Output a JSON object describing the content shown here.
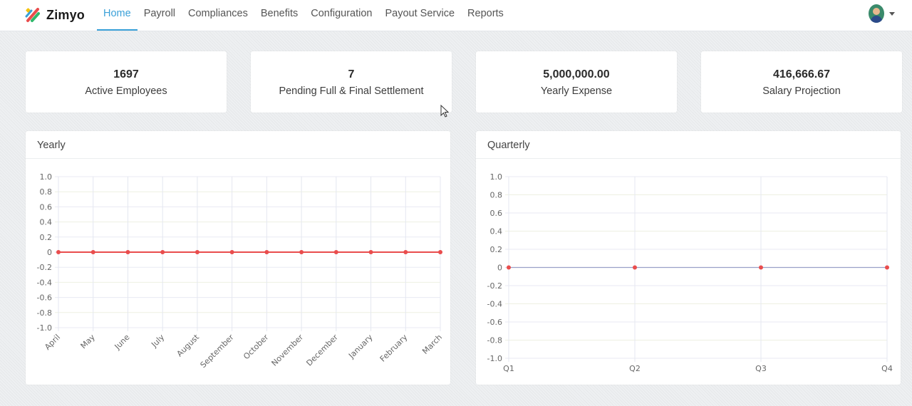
{
  "app": {
    "name": "Zimyo",
    "colors": {
      "accent": "#3aa0d8",
      "series": "#e94d4d"
    }
  },
  "nav": {
    "items": [
      {
        "label": "Home",
        "active": true
      },
      {
        "label": "Payroll"
      },
      {
        "label": "Compliances"
      },
      {
        "label": "Benefits"
      },
      {
        "label": "Configuration"
      },
      {
        "label": "Payout Service"
      },
      {
        "label": "Reports"
      }
    ]
  },
  "user": {
    "avatar_icon": "user-avatar-icon",
    "menu_icon": "caret-down-icon"
  },
  "stats": [
    {
      "value": "1697",
      "label": "Active Employees"
    },
    {
      "value": "7",
      "label": "Pending Full & Final Settlement"
    },
    {
      "value": "5,000,000.00",
      "label": "Yearly Expense"
    },
    {
      "value": "416,666.67",
      "label": "Salary Projection"
    }
  ],
  "panels": {
    "yearly_title": "Yearly",
    "quarterly_title": "Quarterly"
  },
  "chart_data": [
    {
      "type": "line",
      "title": "Yearly",
      "categories": [
        "April",
        "May",
        "June",
        "July",
        "August",
        "September",
        "October",
        "November",
        "December",
        "January",
        "February",
        "March"
      ],
      "series": [
        {
          "values": [
            0,
            0,
            0,
            0,
            0,
            0,
            0,
            0,
            0,
            0,
            0,
            0
          ]
        }
      ],
      "ylim": [
        -1.0,
        1.0
      ],
      "yticks": [
        "1.0",
        "0.8",
        "0.6",
        "0.4",
        "0.2",
        "0",
        "-0.2",
        "-0.4",
        "-0.6",
        "-0.8",
        "-1.0"
      ],
      "grid": true,
      "legend": "none"
    },
    {
      "type": "line",
      "title": "Quarterly",
      "categories": [
        "Q1",
        "Q2",
        "Q3",
        "Q4"
      ],
      "series": [
        {
          "values": [
            0,
            0,
            0,
            0
          ]
        }
      ],
      "ylim": [
        -1.0,
        1.0
      ],
      "yticks": [
        "1.0",
        "0.8",
        "0.6",
        "0.4",
        "0.2",
        "0",
        "-0.2",
        "-0.4",
        "-0.6",
        "-0.8",
        "-1.0"
      ],
      "grid": true,
      "legend": "none"
    }
  ]
}
